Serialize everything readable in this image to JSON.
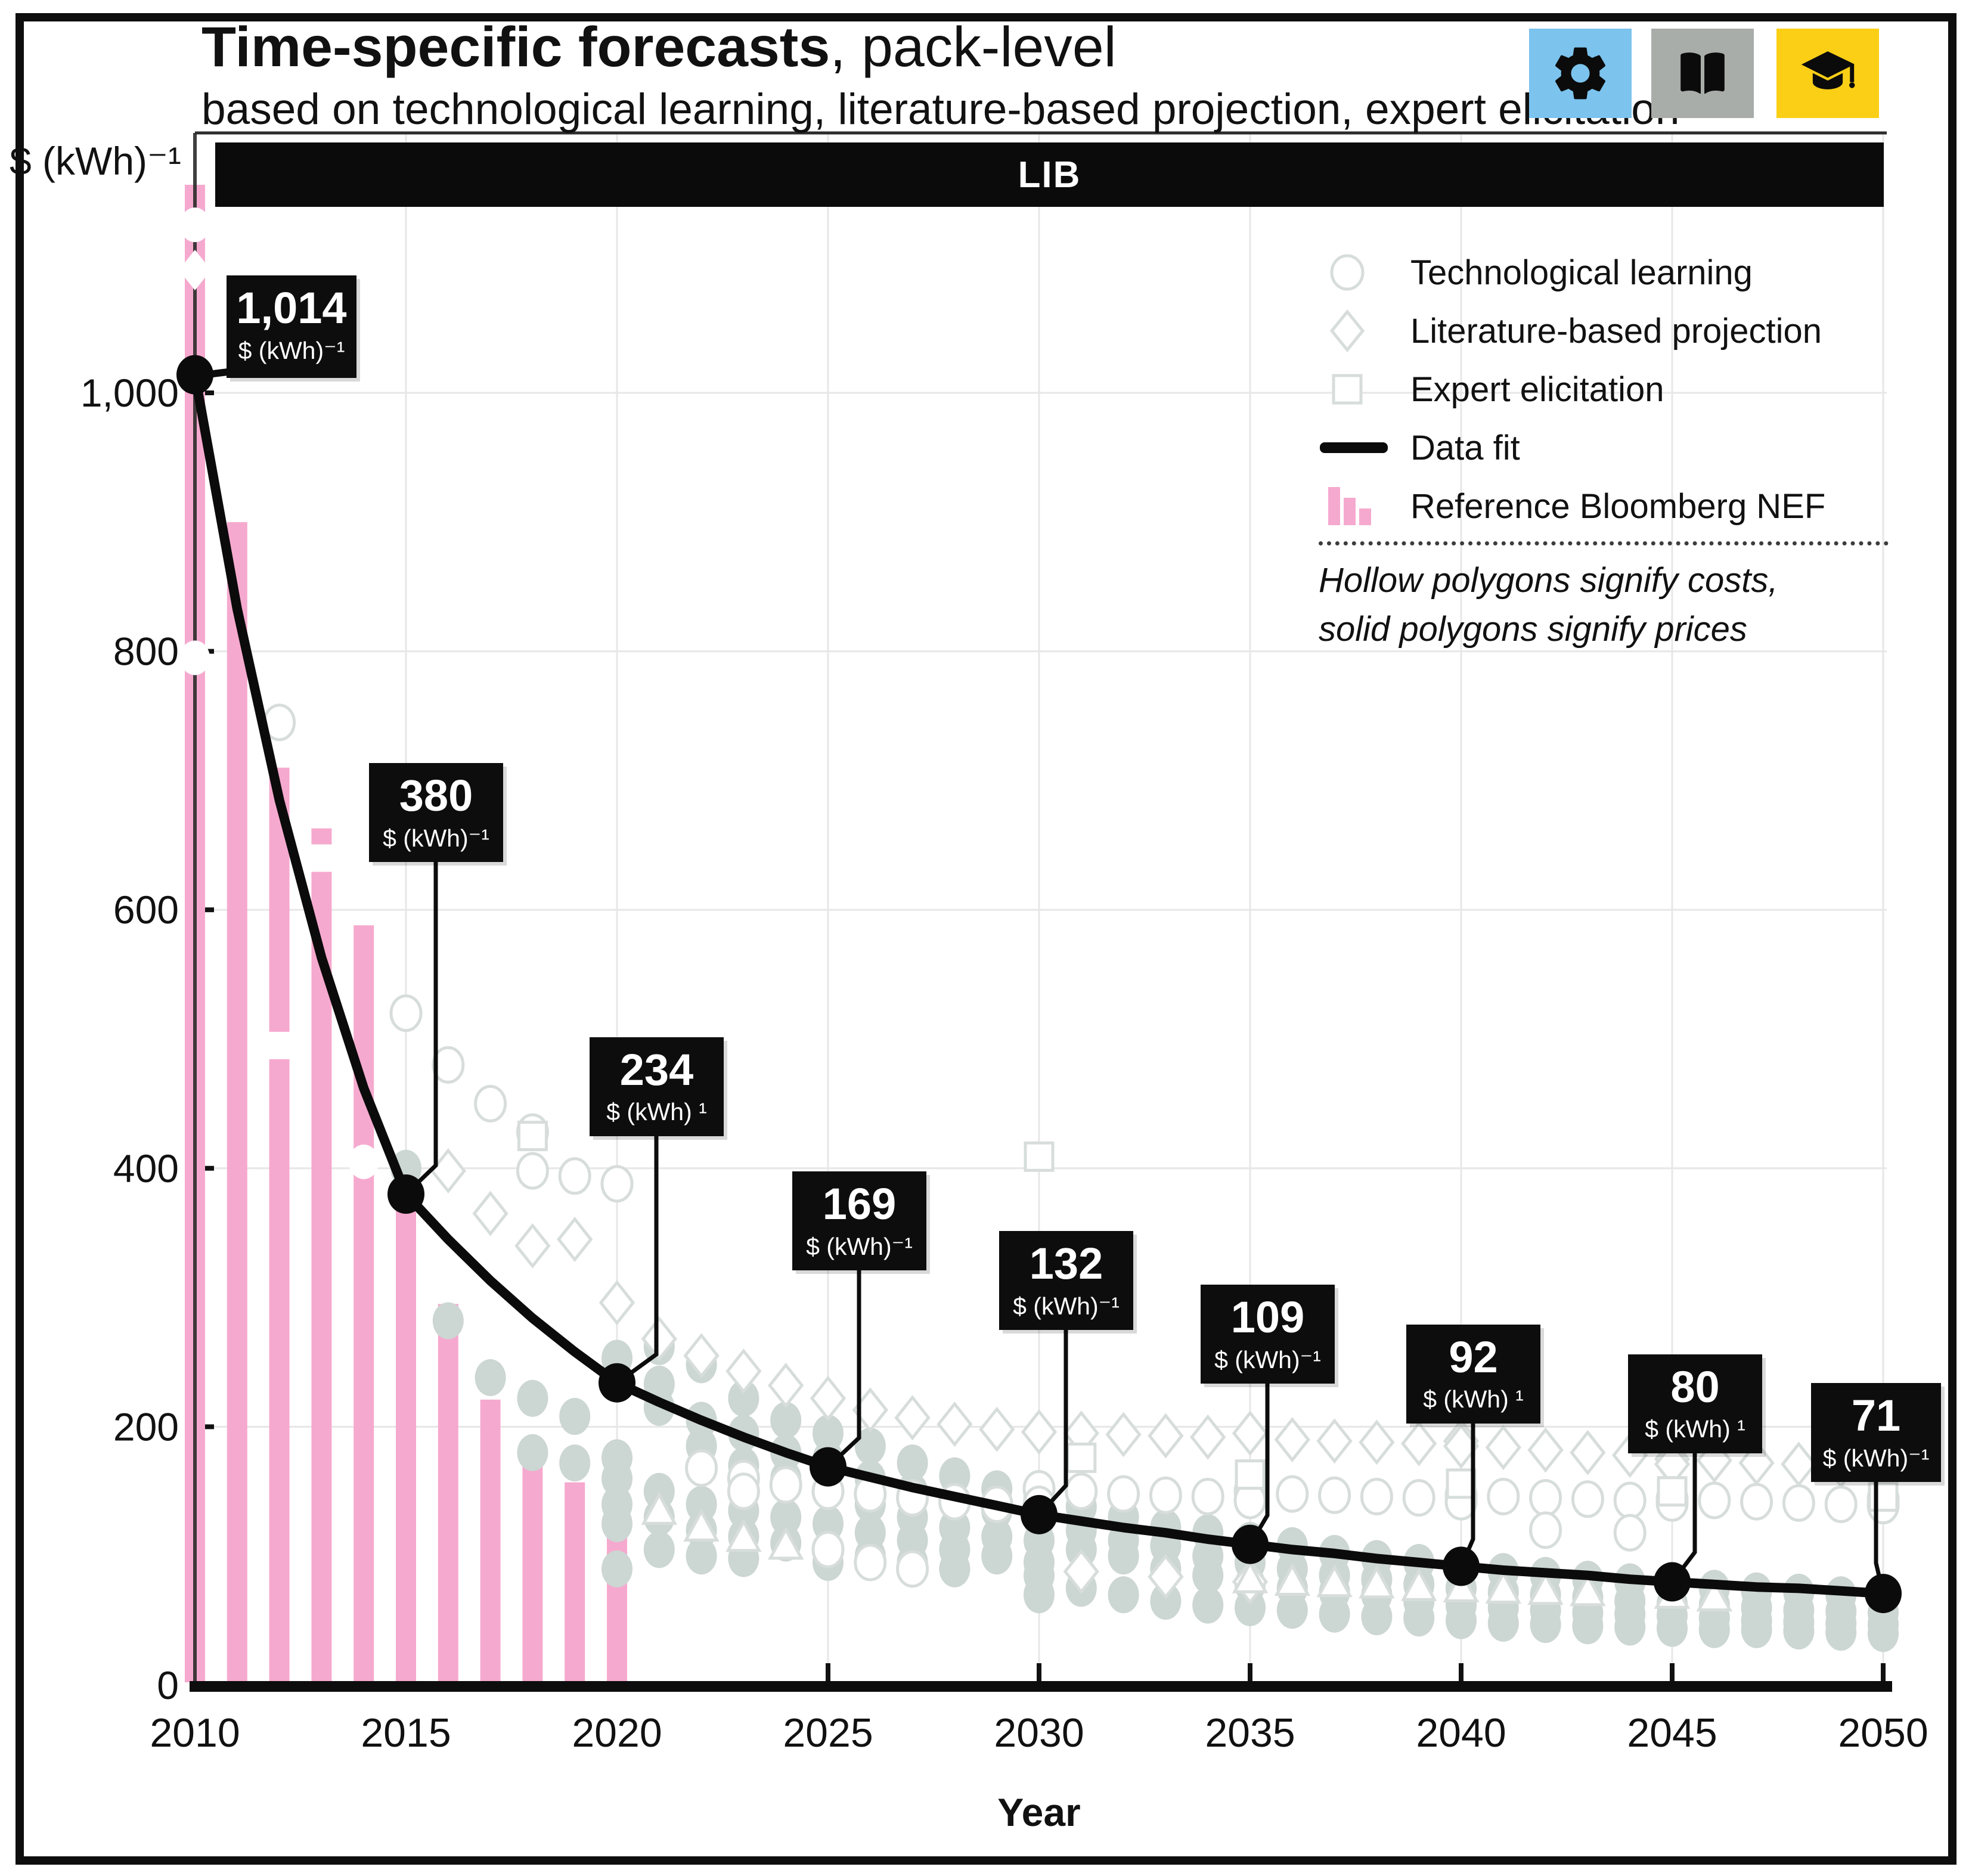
{
  "title": {
    "bold": "Time-specific forecasts",
    "rest": ", pack-level",
    "subtitle": "based on technological learning, literature-based projection, expert elicitation"
  },
  "toolbar": {
    "icons": [
      {
        "name": "gear-icon",
        "bg": "#7CC3EE"
      },
      {
        "name": "book-icon",
        "bg": "#A9ADAA"
      },
      {
        "name": "graduation-cap-icon",
        "bg": "#FBCF16"
      }
    ]
  },
  "band_label": "LIB",
  "y_axis": {
    "unit_label": "$ (kWh)⁻¹",
    "ticks": [
      "1,000",
      "800",
      "600",
      "400",
      "200",
      "0"
    ],
    "tick_values": [
      1000,
      800,
      600,
      400,
      200,
      0
    ]
  },
  "x_axis": {
    "label": "Year",
    "ticks": [
      "2010",
      "2015",
      "2020",
      "2025",
      "2030",
      "2035",
      "2040",
      "2045",
      "2050"
    ],
    "tick_values": [
      2010,
      2015,
      2020,
      2025,
      2030,
      2035,
      2040,
      2045,
      2050
    ]
  },
  "legend": {
    "items": [
      {
        "symbol": "circle",
        "label": "Technological learning"
      },
      {
        "symbol": "diamond",
        "label": "Literature-based projection"
      },
      {
        "symbol": "square",
        "label": "Expert elicitation"
      },
      {
        "symbol": "line",
        "label": "Data fit"
      },
      {
        "symbol": "bars",
        "label": "Reference Bloomberg NEF"
      }
    ],
    "note_line1": "Hollow polygons signify costs,",
    "note_line2": "solid polygons signify prices"
  },
  "chart_data": {
    "type": "line",
    "components": [
      "line",
      "scatter",
      "bar"
    ],
    "title": "Time-specific forecasts, pack-level (LIB)",
    "xlabel": "Year",
    "ylabel": "$ (kWh)⁻¹",
    "xlim": [
      2010,
      2050
    ],
    "ylim": [
      0,
      1200
    ],
    "grid": true,
    "legend_position": "top-right",
    "fit_series": {
      "name": "Data fit",
      "x": [
        2010,
        2015,
        2020,
        2025,
        2030,
        2035,
        2040,
        2045,
        2050
      ],
      "y": [
        1014,
        380,
        234,
        169,
        132,
        109,
        92,
        80,
        71
      ]
    },
    "fit_curve_yearly": {
      "x_start": 2010,
      "y": [
        1014,
        833,
        685,
        563,
        462,
        380,
        345,
        313,
        284,
        258,
        234,
        219,
        205,
        192,
        180,
        169,
        161,
        153,
        146,
        139,
        132,
        127,
        122,
        118,
        113,
        109,
        105,
        102,
        98,
        95,
        92,
        89,
        87,
        85,
        82,
        80,
        78,
        76,
        75,
        73,
        71
      ]
    },
    "callouts": [
      {
        "year": 2010,
        "value": "1,014",
        "unit": "$ (kWh)⁻¹"
      },
      {
        "year": 2015,
        "value": "380",
        "unit": "$ (kWh)⁻¹"
      },
      {
        "year": 2020,
        "value": "234",
        "unit": "$ (kWh) ¹"
      },
      {
        "year": 2025,
        "value": "169",
        "unit": "$ (kWh)⁻¹"
      },
      {
        "year": 2030,
        "value": "132",
        "unit": "$ (kWh)⁻¹"
      },
      {
        "year": 2035,
        "value": "109",
        "unit": "$ (kWh)⁻¹"
      },
      {
        "year": 2040,
        "value": "92",
        "unit": "$ (kWh) ¹"
      },
      {
        "year": 2045,
        "value": "80",
        "unit": "$ (kWh) ¹"
      },
      {
        "year": 2050,
        "value": "71",
        "unit": "$ (kWh)⁻¹"
      }
    ],
    "bars": {
      "name": "Reference Bloomberg NEF",
      "color": "#F6A9CE",
      "years": [
        2010,
        2011,
        2012,
        2013,
        2014,
        2015,
        2016,
        2017,
        2018,
        2019,
        2020
      ],
      "values": [
        1161,
        900,
        710,
        663,
        588,
        373,
        295,
        221,
        181,
        157,
        137
      ]
    },
    "scatter": {
      "colors": {
        "solid_gray_fill": "#CCD6D2",
        "hollow_stroke": "#D7DDDB",
        "solid_white_fill": "#FFFFFF"
      },
      "shape_codes": {
        "c": "circle",
        "d": "diamond",
        "s": "square",
        "t": "triangle"
      },
      "solid_white": [
        [
          2010,
          1130,
          "c"
        ],
        [
          2010,
          1095,
          "d"
        ],
        [
          2010,
          795,
          "c"
        ],
        [
          2012,
          495,
          "s"
        ],
        [
          2013,
          640,
          "s"
        ],
        [
          2014,
          405,
          "c"
        ]
      ],
      "solid_gray": [
        [
          2015,
          400
        ],
        [
          2016,
          282
        ],
        [
          2017,
          238
        ],
        [
          2018,
          222
        ],
        [
          2018,
          180
        ],
        [
          2019,
          208
        ],
        [
          2019,
          172
        ],
        [
          2020,
          253
        ],
        [
          2020,
          235
        ],
        [
          2020,
          176
        ],
        [
          2020,
          160
        ],
        [
          2020,
          140
        ],
        [
          2020,
          125
        ],
        [
          2020,
          90
        ],
        [
          2021,
          262
        ],
        [
          2021,
          233
        ],
        [
          2021,
          215
        ],
        [
          2021,
          150
        ],
        [
          2021,
          130
        ],
        [
          2021,
          105
        ],
        [
          2022,
          248
        ],
        [
          2022,
          205
        ],
        [
          2022,
          185
        ],
        [
          2022,
          140
        ],
        [
          2022,
          120
        ],
        [
          2022,
          100
        ],
        [
          2023,
          222
        ],
        [
          2023,
          195
        ],
        [
          2023,
          170
        ],
        [
          2023,
          135
        ],
        [
          2023,
          115
        ],
        [
          2023,
          98
        ],
        [
          2024,
          205
        ],
        [
          2024,
          180
        ],
        [
          2024,
          160
        ],
        [
          2024,
          130
        ],
        [
          2024,
          110
        ],
        [
          2025,
          195
        ],
        [
          2025,
          175
        ],
        [
          2025,
          150
        ],
        [
          2025,
          125
        ],
        [
          2025,
          105
        ],
        [
          2025,
          95
        ],
        [
          2026,
          185
        ],
        [
          2026,
          160
        ],
        [
          2026,
          140
        ],
        [
          2026,
          118
        ],
        [
          2026,
          100
        ],
        [
          2027,
          172
        ],
        [
          2027,
          150
        ],
        [
          2027,
          130
        ],
        [
          2027,
          112
        ],
        [
          2027,
          95
        ],
        [
          2028,
          162
        ],
        [
          2028,
          142
        ],
        [
          2028,
          122
        ],
        [
          2028,
          105
        ],
        [
          2028,
          90
        ],
        [
          2029,
          152
        ],
        [
          2029,
          135
        ],
        [
          2029,
          115
        ],
        [
          2029,
          100
        ],
        [
          2030,
          145
        ],
        [
          2030,
          128
        ],
        [
          2030,
          112
        ],
        [
          2030,
          95
        ],
        [
          2030,
          85
        ],
        [
          2030,
          70
        ],
        [
          2031,
          138
        ],
        [
          2031,
          120
        ],
        [
          2031,
          105
        ],
        [
          2031,
          75
        ],
        [
          2032,
          130
        ],
        [
          2032,
          112
        ],
        [
          2032,
          100
        ],
        [
          2032,
          70
        ],
        [
          2033,
          122
        ],
        [
          2033,
          108
        ],
        [
          2033,
          90
        ],
        [
          2033,
          65
        ],
        [
          2034,
          118
        ],
        [
          2034,
          100
        ],
        [
          2034,
          85
        ],
        [
          2034,
          62
        ],
        [
          2035,
          112
        ],
        [
          2035,
          95
        ],
        [
          2035,
          78
        ],
        [
          2035,
          60
        ],
        [
          2036,
          108
        ],
        [
          2036,
          90
        ],
        [
          2036,
          75
        ],
        [
          2036,
          58
        ],
        [
          2037,
          102
        ],
        [
          2037,
          85
        ],
        [
          2037,
          72
        ],
        [
          2037,
          55
        ],
        [
          2038,
          98
        ],
        [
          2038,
          82
        ],
        [
          2038,
          70
        ],
        [
          2038,
          53
        ],
        [
          2039,
          95
        ],
        [
          2039,
          78
        ],
        [
          2039,
          65
        ],
        [
          2039,
          52
        ],
        [
          2040,
          90
        ],
        [
          2040,
          75
        ],
        [
          2040,
          62
        ],
        [
          2040,
          50
        ],
        [
          2041,
          88
        ],
        [
          2041,
          72
        ],
        [
          2041,
          60
        ],
        [
          2041,
          48
        ],
        [
          2042,
          85
        ],
        [
          2042,
          70
        ],
        [
          2042,
          58
        ],
        [
          2042,
          47
        ],
        [
          2043,
          82
        ],
        [
          2043,
          68
        ],
        [
          2043,
          56
        ],
        [
          2043,
          46
        ],
        [
          2044,
          80
        ],
        [
          2044,
          65
        ],
        [
          2044,
          55
        ],
        [
          2044,
          45
        ],
        [
          2045,
          78
        ],
        [
          2045,
          63
        ],
        [
          2045,
          54
        ],
        [
          2045,
          44
        ],
        [
          2046,
          75
        ],
        [
          2046,
          62
        ],
        [
          2046,
          52
        ],
        [
          2046,
          43
        ],
        [
          2047,
          73
        ],
        [
          2047,
          60
        ],
        [
          2047,
          50
        ],
        [
          2047,
          43
        ],
        [
          2048,
          72
        ],
        [
          2048,
          58
        ],
        [
          2048,
          49
        ],
        [
          2048,
          42
        ],
        [
          2049,
          70
        ],
        [
          2049,
          57
        ],
        [
          2049,
          48
        ],
        [
          2049,
          41
        ],
        [
          2050,
          68
        ],
        [
          2050,
          56
        ],
        [
          2050,
          47
        ],
        [
          2050,
          40
        ]
      ],
      "hollow": [
        [
          2012,
          745,
          "c"
        ],
        [
          2015,
          520,
          "c"
        ],
        [
          2016,
          480,
          "c"
        ],
        [
          2017,
          450,
          "c"
        ],
        [
          2018,
          428,
          "c"
        ],
        [
          2018,
          398,
          "c"
        ],
        [
          2019,
          394,
          "c"
        ],
        [
          2020,
          388,
          "c"
        ],
        [
          2022,
          168,
          "c"
        ],
        [
          2023,
          160,
          "c"
        ],
        [
          2023,
          150,
          "c"
        ],
        [
          2024,
          155,
          "c"
        ],
        [
          2025,
          150,
          "c"
        ],
        [
          2025,
          105,
          "c"
        ],
        [
          2026,
          148,
          "c"
        ],
        [
          2026,
          95,
          "c"
        ],
        [
          2027,
          145,
          "c"
        ],
        [
          2027,
          90,
          "c"
        ],
        [
          2028,
          142,
          "c"
        ],
        [
          2029,
          140,
          "c"
        ],
        [
          2030,
          152,
          "c"
        ],
        [
          2030,
          140,
          "c"
        ],
        [
          2031,
          150,
          "c"
        ],
        [
          2032,
          148,
          "c"
        ],
        [
          2033,
          147,
          "c"
        ],
        [
          2034,
          146,
          "c"
        ],
        [
          2035,
          150,
          "c"
        ],
        [
          2035,
          143,
          "c"
        ],
        [
          2036,
          148,
          "c"
        ],
        [
          2037,
          147,
          "c"
        ],
        [
          2038,
          146,
          "c"
        ],
        [
          2039,
          145,
          "c"
        ],
        [
          2040,
          147,
          "c"
        ],
        [
          2040,
          142,
          "c"
        ],
        [
          2041,
          146,
          "c"
        ],
        [
          2042,
          145,
          "c"
        ],
        [
          2042,
          120,
          "c"
        ],
        [
          2043,
          144,
          "c"
        ],
        [
          2044,
          143,
          "c"
        ],
        [
          2044,
          118,
          "c"
        ],
        [
          2045,
          144,
          "c"
        ],
        [
          2045,
          141,
          "c"
        ],
        [
          2046,
          143,
          "c"
        ],
        [
          2047,
          142,
          "c"
        ],
        [
          2048,
          141,
          "c"
        ],
        [
          2049,
          140,
          "c"
        ],
        [
          2050,
          144,
          "c"
        ],
        [
          2050,
          139,
          "c"
        ],
        [
          2016,
          398,
          "d"
        ],
        [
          2017,
          365,
          "d"
        ],
        [
          2018,
          340,
          "d"
        ],
        [
          2019,
          345,
          "d"
        ],
        [
          2020,
          296,
          "d"
        ],
        [
          2021,
          268,
          "d"
        ],
        [
          2022,
          255,
          "d"
        ],
        [
          2023,
          243,
          "d"
        ],
        [
          2024,
          232,
          "d"
        ],
        [
          2025,
          222,
          "d"
        ],
        [
          2026,
          213,
          "d"
        ],
        [
          2027,
          207,
          "d"
        ],
        [
          2028,
          202,
          "d"
        ],
        [
          2029,
          198,
          "d"
        ],
        [
          2030,
          196,
          "d"
        ],
        [
          2031,
          195,
          "d"
        ],
        [
          2031,
          88,
          "d"
        ],
        [
          2032,
          194,
          "d"
        ],
        [
          2033,
          193,
          "d"
        ],
        [
          2033,
          84,
          "d"
        ],
        [
          2034,
          192,
          "d"
        ],
        [
          2035,
          195,
          "d"
        ],
        [
          2035,
          80,
          "d"
        ],
        [
          2036,
          190,
          "d"
        ],
        [
          2037,
          189,
          "d"
        ],
        [
          2038,
          188,
          "d"
        ],
        [
          2039,
          187,
          "d"
        ],
        [
          2040,
          189,
          "d"
        ],
        [
          2040,
          185,
          "d"
        ],
        [
          2041,
          184,
          "d"
        ],
        [
          2042,
          182,
          "d"
        ],
        [
          2043,
          180,
          "d"
        ],
        [
          2044,
          178,
          "d"
        ],
        [
          2045,
          175,
          "d"
        ],
        [
          2045,
          171,
          "d"
        ],
        [
          2046,
          174,
          "d"
        ],
        [
          2047,
          172,
          "d"
        ],
        [
          2048,
          171,
          "d"
        ],
        [
          2049,
          170,
          "d"
        ],
        [
          2050,
          171,
          "d"
        ],
        [
          2050,
          167,
          "d"
        ],
        [
          2018,
          425,
          "s"
        ],
        [
          2030,
          409,
          "s"
        ],
        [
          2031,
          176,
          "s"
        ],
        [
          2035,
          163,
          "s"
        ],
        [
          2040,
          156,
          "s"
        ],
        [
          2045,
          150,
          "s"
        ],
        [
          2050,
          146,
          "s"
        ],
        [
          2021,
          135,
          "t"
        ],
        [
          2022,
          122,
          "t"
        ],
        [
          2023,
          114,
          "t"
        ],
        [
          2024,
          108,
          "t"
        ],
        [
          2035,
          82,
          "t"
        ],
        [
          2036,
          80,
          "t"
        ],
        [
          2037,
          79,
          "t"
        ],
        [
          2038,
          78,
          "t"
        ],
        [
          2039,
          76,
          "t"
        ],
        [
          2040,
          75,
          "t"
        ],
        [
          2041,
          74,
          "t"
        ],
        [
          2042,
          73,
          "t"
        ],
        [
          2043,
          72,
          "t"
        ],
        [
          2045,
          70,
          "t"
        ],
        [
          2046,
          68,
          "t"
        ]
      ]
    }
  }
}
